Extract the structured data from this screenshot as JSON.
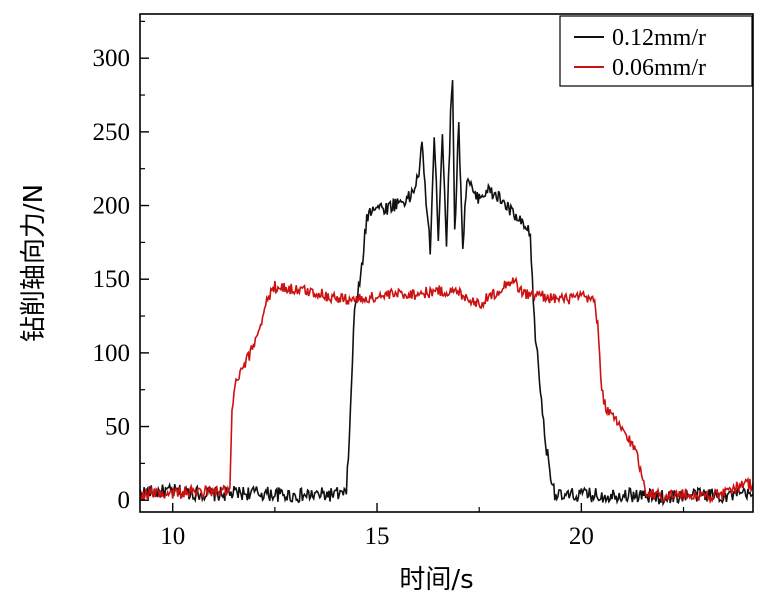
{
  "chart_data": {
    "type": "line",
    "title": "",
    "xlabel": "时间/s",
    "ylabel": "钻削轴向力/N",
    "xlim": [
      9.2,
      24.2
    ],
    "ylim": [
      -8,
      330
    ],
    "x_ticks": [
      10,
      15,
      20
    ],
    "y_ticks": [
      0,
      50,
      100,
      150,
      200,
      250,
      300
    ],
    "grid": false,
    "legend": "top-right",
    "series": [
      {
        "name": "0.12mm/r",
        "color": "#111111",
        "points": [
          [
            9.2,
            5
          ],
          [
            10.0,
            6
          ],
          [
            11.0,
            4
          ],
          [
            12.0,
            5
          ],
          [
            13.0,
            3
          ],
          [
            14.0,
            4
          ],
          [
            14.25,
            4
          ],
          [
            14.35,
            60
          ],
          [
            14.45,
            130
          ],
          [
            14.6,
            150
          ],
          [
            14.75,
            192
          ],
          [
            14.9,
            200
          ],
          [
            15.2,
            198
          ],
          [
            15.5,
            202
          ],
          [
            15.8,
            205
          ],
          [
            16.0,
            218
          ],
          [
            16.1,
            240
          ],
          [
            16.2,
            205
          ],
          [
            16.3,
            170
          ],
          [
            16.4,
            245
          ],
          [
            16.5,
            180
          ],
          [
            16.6,
            250
          ],
          [
            16.7,
            175
          ],
          [
            16.8,
            260
          ],
          [
            16.85,
            290
          ],
          [
            16.9,
            180
          ],
          [
            17.0,
            255
          ],
          [
            17.1,
            172
          ],
          [
            17.2,
            220
          ],
          [
            17.4,
            205
          ],
          [
            17.7,
            210
          ],
          [
            18.0,
            205
          ],
          [
            18.3,
            195
          ],
          [
            18.6,
            185
          ],
          [
            18.75,
            180
          ],
          [
            18.85,
            120
          ],
          [
            19.0,
            75
          ],
          [
            19.1,
            45
          ],
          [
            19.2,
            25
          ],
          [
            19.35,
            5
          ],
          [
            19.5,
            2
          ],
          [
            20.0,
            4
          ],
          [
            20.5,
            3
          ],
          [
            21.0,
            4
          ],
          [
            21.5,
            3
          ],
          [
            22.0,
            2
          ],
          [
            22.5,
            3
          ],
          [
            23.0,
            4
          ],
          [
            23.5,
            3
          ],
          [
            24.0,
            4
          ],
          [
            24.2,
            3
          ]
        ]
      },
      {
        "name": "0.06mm/r",
        "color": "#cc1111",
        "points": [
          [
            9.2,
            4
          ],
          [
            10.0,
            5
          ],
          [
            11.0,
            6
          ],
          [
            11.4,
            6
          ],
          [
            11.45,
            60
          ],
          [
            11.55,
            80
          ],
          [
            11.7,
            88
          ],
          [
            11.9,
            100
          ],
          [
            12.1,
            115
          ],
          [
            12.3,
            135
          ],
          [
            12.5,
            145
          ],
          [
            13.0,
            143
          ],
          [
            13.5,
            141
          ],
          [
            14.0,
            137
          ],
          [
            14.5,
            136
          ],
          [
            15.0,
            138
          ],
          [
            15.5,
            140
          ],
          [
            16.0,
            140
          ],
          [
            16.5,
            142
          ],
          [
            17.0,
            141
          ],
          [
            17.5,
            133
          ],
          [
            18.0,
            143
          ],
          [
            18.3,
            150
          ],
          [
            18.6,
            140
          ],
          [
            19.0,
            139
          ],
          [
            19.5,
            136
          ],
          [
            20.0,
            138
          ],
          [
            20.3,
            136
          ],
          [
            20.4,
            120
          ],
          [
            20.5,
            75
          ],
          [
            20.6,
            62
          ],
          [
            20.8,
            55
          ],
          [
            21.0,
            48
          ],
          [
            21.2,
            40
          ],
          [
            21.35,
            32
          ],
          [
            21.5,
            15
          ],
          [
            21.6,
            5
          ],
          [
            22.0,
            3
          ],
          [
            22.5,
            4
          ],
          [
            23.0,
            3
          ],
          [
            23.5,
            4
          ],
          [
            24.0,
            12
          ],
          [
            24.2,
            10
          ]
        ]
      }
    ]
  }
}
